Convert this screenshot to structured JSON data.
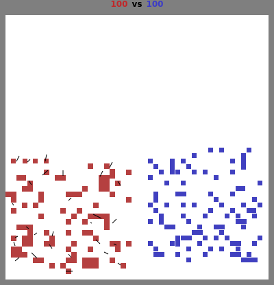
{
  "header": {
    "red_score": "100",
    "vs_label": "vs",
    "blue_score": "100"
  },
  "colors": {
    "red_team": "#b54040",
    "blue_team": "#4040c0",
    "arena_bg": "#ffffff",
    "frame": "#7f7f7f",
    "pointer": "#000000"
  },
  "board": {
    "red_units": 100,
    "blue_units": 100
  }
}
